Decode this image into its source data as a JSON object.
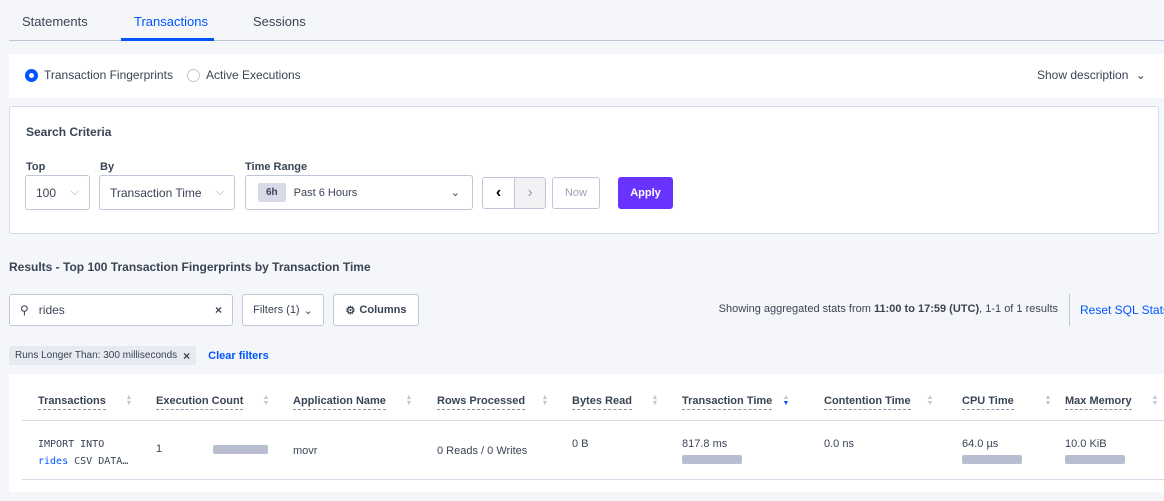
{
  "tabs": [
    {
      "label": "Statements"
    },
    {
      "label": "Transactions",
      "active": true
    },
    {
      "label": "Sessions"
    }
  ],
  "view_toggle": {
    "options": [
      {
        "label": "Transaction Fingerprints",
        "selected": true
      },
      {
        "label": "Active Executions",
        "selected": false
      }
    ],
    "show_description": "Show description"
  },
  "search_criteria": {
    "title": "Search Criteria",
    "top": {
      "label": "Top",
      "value": "100"
    },
    "by": {
      "label": "By",
      "value": "Transaction Time"
    },
    "time_range": {
      "label": "Time Range",
      "badge": "6h",
      "value": "Past 6 Hours"
    },
    "now_label": "Now",
    "apply_label": "Apply"
  },
  "results": {
    "title": "Results - Top 100 Transaction Fingerprints by Transaction Time",
    "search": {
      "value": "rides",
      "clear": "×"
    },
    "filters_label": "Filters (1)",
    "columns_label": "Columns",
    "summary": {
      "prefix": "Showing aggregated stats from ",
      "range": "11:00 to 17:59 (UTC)",
      "suffix": ", 1-1 of 1 results"
    },
    "reset_label": "Reset SQL Stats",
    "active_filter": "Runs Longer Than: 300 milliseconds",
    "clear_filters": "Clear filters"
  },
  "table": {
    "columns": [
      "Transactions",
      "Execution Count",
      "Application Name",
      "Rows Processed",
      "Bytes Read",
      "Transaction Time",
      "Contention Time",
      "CPU Time",
      "Max Memory"
    ],
    "sorted_column": "Transaction Time",
    "rows": [
      {
        "txn_line1": "IMPORT INTO",
        "txn_highlight": "rides",
        "txn_rest": " CSV DATA…",
        "exec_count": "1",
        "app": "movr",
        "rows": "0 Reads / 0 Writes",
        "bytes": "0 B",
        "txn_time": "817.8 ms",
        "contention": "0.0 ns",
        "cpu": "64.0 µs",
        "mem": "10.0 KiB"
      }
    ]
  },
  "colors": {
    "accent": "#0055ff",
    "apply": "#6933ff",
    "bar": "#b8bdd0"
  }
}
